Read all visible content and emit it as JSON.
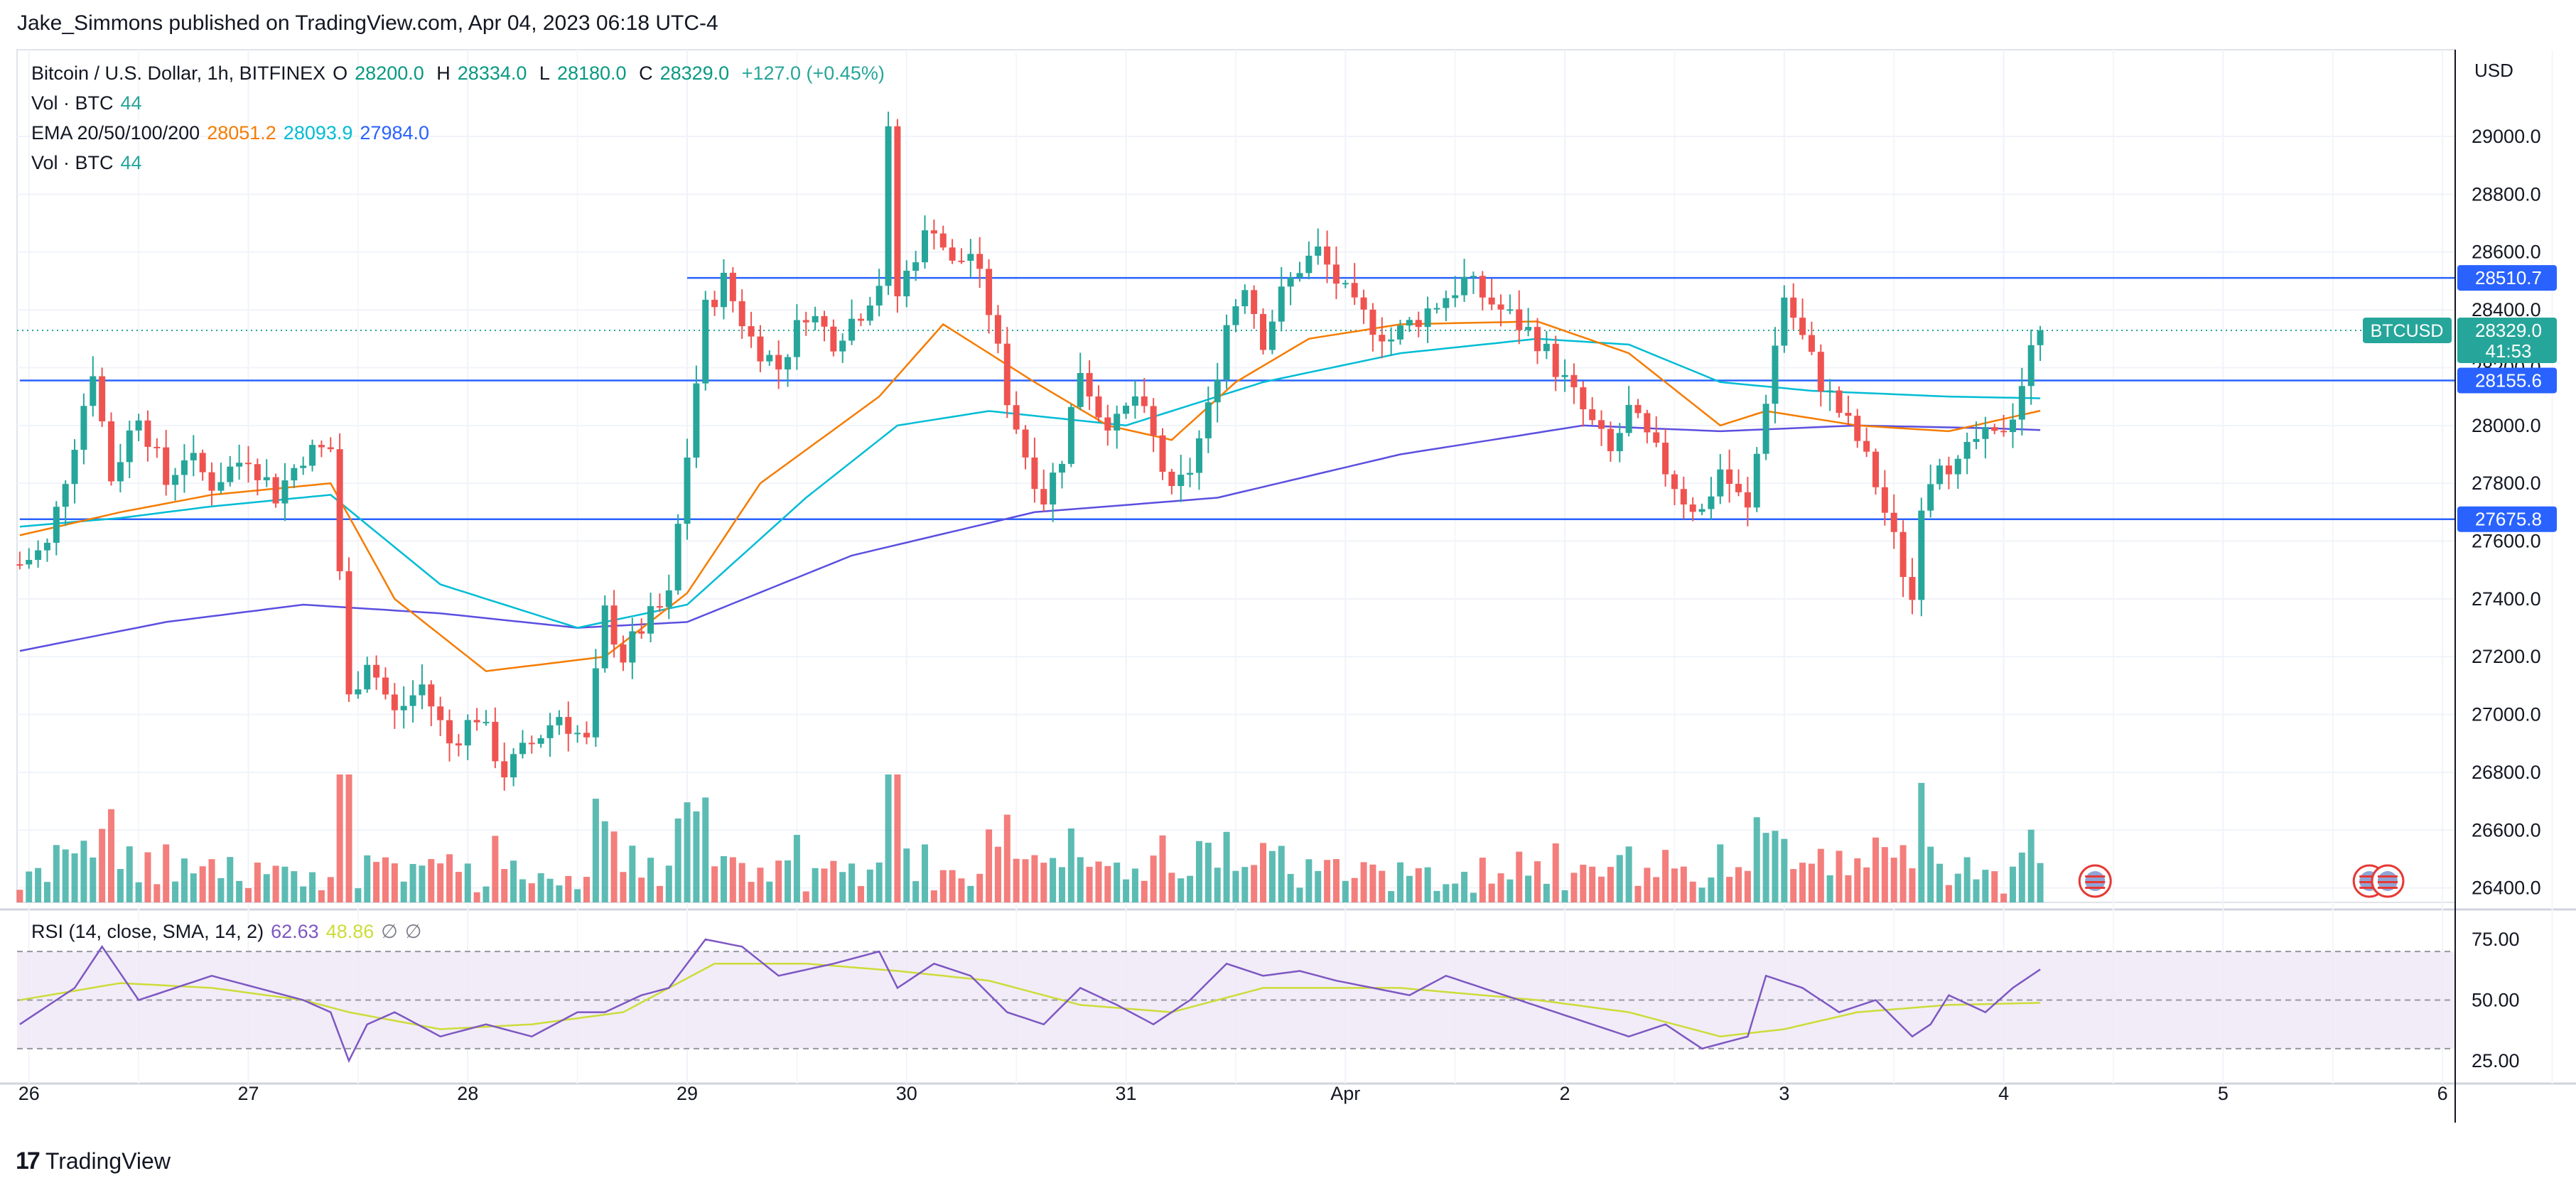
{
  "header": {
    "published": "Jake_Simmons published on TradingView.com, Apr 04, 2023 06:18 UTC-4"
  },
  "legend": {
    "symbol": "Bitcoin / U.S. Dollar, 1h, BITFINEX",
    "open_label": "O",
    "open": "28200.0",
    "high_label": "H",
    "high": "28334.0",
    "low_label": "L",
    "low": "28180.0",
    "close_label": "C",
    "close": "28329.0",
    "change": "+127.0 (+0.45%)",
    "vol_label": "Vol · BTC",
    "vol_value": "44",
    "ema_label": "EMA 20/50/100/200",
    "ema_20": "28051.2",
    "ema_50": "28093.9",
    "ema_100": "27984.0",
    "vol2_label": "Vol · BTC",
    "vol2_value": "44"
  },
  "rsi_legend": {
    "label": "RSI (14, close, SMA, 14, 2)",
    "rsi": "62.63",
    "sma": "48.86",
    "sym1": "∅",
    "sym2": "∅"
  },
  "axis": {
    "currency": "USD"
  },
  "price_labels": {
    "level_high": "28510.7",
    "current": "28329.0",
    "countdown": "41:53",
    "symbol_tag": "BTCUSD",
    "level_mid": "28155.6",
    "level_low": "27675.8"
  },
  "footer": {
    "brand": "TradingView"
  },
  "colors": {
    "up": "#26a69a",
    "down": "#ef5350",
    "vol_up": "#26a69a",
    "vol_down": "#ef5350",
    "ema20": "#f57c00",
    "ema50": "#00bcd4",
    "ema100": "#5b4fe0",
    "hline": "#2962ff",
    "rsi": "#7e57c2",
    "rsi_sma": "#cddc39",
    "rsi_band": "#ede7f6"
  },
  "chart_data": {
    "type": "candlestick",
    "title": "Bitcoin / U.S. Dollar, 1h, BITFINEX",
    "ylim": [
      26350,
      29300
    ],
    "y_ticks": [
      "29000.0",
      "28800.0",
      "28600.0",
      "28400.0",
      "28200.0",
      "28000.0",
      "27800.0",
      "27600.0",
      "27400.0",
      "27200.0",
      "27000.0",
      "26800.0",
      "26600.0",
      "26400.0"
    ],
    "x_ticks": [
      "26",
      "27",
      "28",
      "29",
      "30",
      "31",
      "Apr",
      "2",
      "3",
      "4",
      "5",
      "6"
    ],
    "x_tick_hours": [
      0,
      24,
      48,
      72,
      96,
      120,
      144,
      168,
      192,
      216,
      240,
      264
    ],
    "horizontal_levels": [
      {
        "value": 28510.7,
        "start_hour": 72
      },
      {
        "value": 28155.6,
        "start_hour": -1
      },
      {
        "value": 27675.8,
        "start_hour": -1
      }
    ],
    "key_points": [
      [
        -1,
        27520
      ],
      [
        2,
        27580
      ],
      [
        5,
        27950
      ],
      [
        7,
        28200
      ],
      [
        9,
        27820
      ],
      [
        12,
        28050
      ],
      [
        15,
        27800
      ],
      [
        17,
        27900
      ],
      [
        20,
        27800
      ],
      [
        24,
        27900
      ],
      [
        27,
        27760
      ],
      [
        30,
        27900
      ],
      [
        33,
        27920
      ],
      [
        34,
        27500
      ],
      [
        35,
        27050
      ],
      [
        37,
        27200
      ],
      [
        40,
        27000
      ],
      [
        43,
        27100
      ],
      [
        46,
        26900
      ],
      [
        49,
        27000
      ],
      [
        52,
        26800
      ],
      [
        55,
        26900
      ],
      [
        58,
        27000
      ],
      [
        61,
        26900
      ],
      [
        63,
        27350
      ],
      [
        65,
        27200
      ],
      [
        67,
        27300
      ],
      [
        70,
        27400
      ],
      [
        72,
        27900
      ],
      [
        74,
        28400
      ],
      [
        76,
        28500
      ],
      [
        79,
        28300
      ],
      [
        82,
        28200
      ],
      [
        85,
        28400
      ],
      [
        88,
        28300
      ],
      [
        91,
        28400
      ],
      [
        93,
        28500
      ],
      [
        94,
        29000
      ],
      [
        95,
        28450
      ],
      [
        97,
        28600
      ],
      [
        99,
        28700
      ],
      [
        101,
        28550
      ],
      [
        103,
        28600
      ],
      [
        105,
        28400
      ],
      [
        107,
        28100
      ],
      [
        109,
        27900
      ],
      [
        111,
        27750
      ],
      [
        113,
        27900
      ],
      [
        115,
        28200
      ],
      [
        117,
        28050
      ],
      [
        119,
        28000
      ],
      [
        121,
        28100
      ],
      [
        123,
        27950
      ],
      [
        125,
        27750
      ],
      [
        127,
        27850
      ],
      [
        129,
        28050
      ],
      [
        131,
        28350
      ],
      [
        133,
        28500
      ],
      [
        135,
        28300
      ],
      [
        137,
        28450
      ],
      [
        139,
        28550
      ],
      [
        141,
        28600
      ],
      [
        143,
        28500
      ],
      [
        145,
        28400
      ],
      [
        147,
        28350
      ],
      [
        149,
        28300
      ],
      [
        151,
        28350
      ],
      [
        153,
        28400
      ],
      [
        155,
        28450
      ],
      [
        157,
        28500
      ],
      [
        159,
        28450
      ],
      [
        161,
        28400
      ],
      [
        163,
        28350
      ],
      [
        165,
        28300
      ],
      [
        167,
        28200
      ],
      [
        169,
        28100
      ],
      [
        171,
        28000
      ],
      [
        173,
        27900
      ],
      [
        175,
        28050
      ],
      [
        177,
        27950
      ],
      [
        179,
        27850
      ],
      [
        181,
        27750
      ],
      [
        183,
        27700
      ],
      [
        185,
        27850
      ],
      [
        188,
        27700
      ],
      [
        190,
        28100
      ],
      [
        192,
        28450
      ],
      [
        194,
        28300
      ],
      [
        196,
        28150
      ],
      [
        198,
        28050
      ],
      [
        200,
        27950
      ],
      [
        202,
        27800
      ],
      [
        204,
        27600
      ],
      [
        206,
        27400
      ],
      [
        207,
        27750
      ],
      [
        209,
        27900
      ],
      [
        211,
        27850
      ],
      [
        213,
        27950
      ],
      [
        215,
        27950
      ],
      [
        217,
        28050
      ],
      [
        219,
        28250
      ],
      [
        220,
        28329
      ]
    ],
    "ema20_points": [
      [
        -1,
        27620
      ],
      [
        10,
        27700
      ],
      [
        20,
        27760
      ],
      [
        33,
        27800
      ],
      [
        40,
        27400
      ],
      [
        50,
        27150
      ],
      [
        63,
        27200
      ],
      [
        72,
        27420
      ],
      [
        80,
        27800
      ],
      [
        93,
        28100
      ],
      [
        100,
        28350
      ],
      [
        110,
        28150
      ],
      [
        118,
        28000
      ],
      [
        125,
        27950
      ],
      [
        132,
        28150
      ],
      [
        140,
        28300
      ],
      [
        150,
        28350
      ],
      [
        165,
        28360
      ],
      [
        175,
        28250
      ],
      [
        185,
        28000
      ],
      [
        190,
        28050
      ],
      [
        200,
        28000
      ],
      [
        210,
        27980
      ],
      [
        220,
        28051
      ]
    ],
    "ema50_points": [
      [
        -1,
        27650
      ],
      [
        10,
        27680
      ],
      [
        20,
        27720
      ],
      [
        33,
        27760
      ],
      [
        45,
        27450
      ],
      [
        60,
        27300
      ],
      [
        72,
        27380
      ],
      [
        85,
        27750
      ],
      [
        95,
        28000
      ],
      [
        105,
        28050
      ],
      [
        120,
        28000
      ],
      [
        135,
        28150
      ],
      [
        150,
        28250
      ],
      [
        165,
        28300
      ],
      [
        175,
        28280
      ],
      [
        185,
        28150
      ],
      [
        195,
        28120
      ],
      [
        210,
        28100
      ],
      [
        220,
        28094
      ]
    ],
    "ema100_points": [
      [
        -1,
        27220
      ],
      [
        15,
        27320
      ],
      [
        30,
        27380
      ],
      [
        45,
        27350
      ],
      [
        60,
        27300
      ],
      [
        72,
        27320
      ],
      [
        90,
        27550
      ],
      [
        110,
        27700
      ],
      [
        130,
        27750
      ],
      [
        150,
        27900
      ],
      [
        170,
        28000
      ],
      [
        185,
        27980
      ],
      [
        200,
        28000
      ],
      [
        215,
        27990
      ],
      [
        220,
        27984
      ]
    ],
    "volume_note": "Volume histogram bars (BTC) aligned under candles, colored by candle direction",
    "rsi": {
      "ylim": [
        20,
        80
      ],
      "y_ticks": [
        "75.00",
        "50.00",
        "25.00"
      ],
      "upper": 70,
      "lower": 30,
      "rsi_points": [
        [
          -1,
          40
        ],
        [
          5,
          55
        ],
        [
          8,
          72
        ],
        [
          12,
          50
        ],
        [
          16,
          55
        ],
        [
          20,
          60
        ],
        [
          25,
          55
        ],
        [
          30,
          50
        ],
        [
          33,
          45
        ],
        [
          35,
          25
        ],
        [
          37,
          40
        ],
        [
          40,
          45
        ],
        [
          45,
          35
        ],
        [
          50,
          40
        ],
        [
          55,
          35
        ],
        [
          60,
          45
        ],
        [
          63,
          45
        ],
        [
          67,
          52
        ],
        [
          70,
          55
        ],
        [
          72,
          65
        ],
        [
          74,
          75
        ],
        [
          78,
          72
        ],
        [
          82,
          60
        ],
        [
          88,
          65
        ],
        [
          93,
          70
        ],
        [
          95,
          55
        ],
        [
          99,
          65
        ],
        [
          103,
          60
        ],
        [
          107,
          45
        ],
        [
          111,
          40
        ],
        [
          115,
          55
        ],
        [
          119,
          48
        ],
        [
          123,
          40
        ],
        [
          127,
          50
        ],
        [
          131,
          65
        ],
        [
          135,
          60
        ],
        [
          139,
          62
        ],
        [
          143,
          58
        ],
        [
          147,
          55
        ],
        [
          151,
          52
        ],
        [
          155,
          60
        ],
        [
          159,
          55
        ],
        [
          163,
          50
        ],
        [
          167,
          45
        ],
        [
          171,
          40
        ],
        [
          175,
          35
        ],
        [
          179,
          40
        ],
        [
          183,
          30
        ],
        [
          188,
          35
        ],
        [
          190,
          60
        ],
        [
          194,
          55
        ],
        [
          198,
          45
        ],
        [
          202,
          50
        ],
        [
          206,
          35
        ],
        [
          208,
          40
        ],
        [
          210,
          52
        ],
        [
          214,
          45
        ],
        [
          217,
          55
        ],
        [
          220,
          62.63
        ]
      ],
      "sma_points": [
        [
          -1,
          50
        ],
        [
          10,
          57
        ],
        [
          20,
          55
        ],
        [
          30,
          50
        ],
        [
          35,
          45
        ],
        [
          45,
          38
        ],
        [
          55,
          40
        ],
        [
          65,
          45
        ],
        [
          75,
          65
        ],
        [
          85,
          65
        ],
        [
          95,
          62
        ],
        [
          105,
          58
        ],
        [
          115,
          48
        ],
        [
          125,
          45
        ],
        [
          135,
          55
        ],
        [
          150,
          55
        ],
        [
          165,
          50
        ],
        [
          175,
          45
        ],
        [
          185,
          35
        ],
        [
          192,
          38
        ],
        [
          200,
          45
        ],
        [
          210,
          48
        ],
        [
          220,
          48.86
        ]
      ]
    }
  }
}
